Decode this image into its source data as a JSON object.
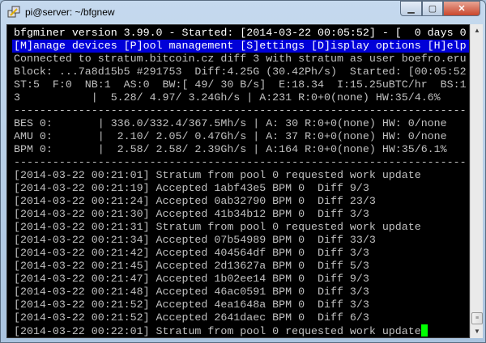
{
  "window": {
    "title": "pi@server: ~/bfgnew",
    "app_icon": "putty-icon",
    "minimize": "minimize-icon",
    "maximize": "maximize-icon",
    "close": "close-icon"
  },
  "terminal": {
    "header": "bfgminer version 3.99.0 - Started: [2014-03-22 00:05:52] - [  0 days 0",
    "menu": "[M]anage devices [P]ool management [S]ettings [D]isplay options [H]elp",
    "connection": "Connected to stratum.bitcoin.cz diff 3 with stratum as user boefro.eru",
    "block": "Block: ...7a8d15b5 #291753  Diff:4.25G (30.42Ph/s)  Started: [00:05:52",
    "stats": "ST:5  F:0  NB:1  AS:0  BW:[ 49/ 30 B/s]  E:18.34  I:15.25uBTC/hr  BS:1",
    "total": "3           |  5.28/ 4.97/ 3.24Gh/s | A:231 R:0+0(none) HW:35/4.6%",
    "separator": "----------------------------------------------------------------------",
    "devices": [
      "BES 0:       | 336.0/332.4/367.5Mh/s | A: 30 R:0+0(none) HW: 0/none",
      "AMU 0:       |  2.10/ 2.05/ 0.47Gh/s | A: 37 R:0+0(none) HW: 0/none",
      "BPM 0:       |  2.58/ 2.58/ 2.39Gh/s | A:164 R:0+0(none) HW:35/6.1%"
    ],
    "log": [
      "[2014-03-22 00:21:01] Stratum from pool 0 requested work update",
      "[2014-03-22 00:21:19] Accepted 1abf43e5 BPM 0  Diff 9/3",
      "[2014-03-22 00:21:24] Accepted 0ab32790 BPM 0  Diff 23/3",
      "[2014-03-22 00:21:30] Accepted 41b34b12 BPM 0  Diff 3/3",
      "[2014-03-22 00:21:31] Stratum from pool 0 requested work update",
      "[2014-03-22 00:21:34] Accepted 07b54989 BPM 0  Diff 33/3",
      "[2014-03-22 00:21:42] Accepted 404564df BPM 0  Diff 3/3",
      "[2014-03-22 00:21:45] Accepted 2d13627a BPM 0  Diff 5/3",
      "[2014-03-22 00:21:47] Accepted 1b02ee14 BPM 0  Diff 9/3",
      "[2014-03-22 00:21:48] Accepted 46ac0591 BPM 0  Diff 3/3",
      "[2014-03-22 00:21:52] Accepted 4ea1648a BPM 0  Diff 3/3",
      "[2014-03-22 00:21:52] Accepted 2641daec BPM 0  Diff 6/3",
      "[2014-03-22 00:22:01] Stratum from pool 0 requested work update"
    ],
    "cursor_color": "#00ff00",
    "menu_bg": "#0000d8"
  }
}
